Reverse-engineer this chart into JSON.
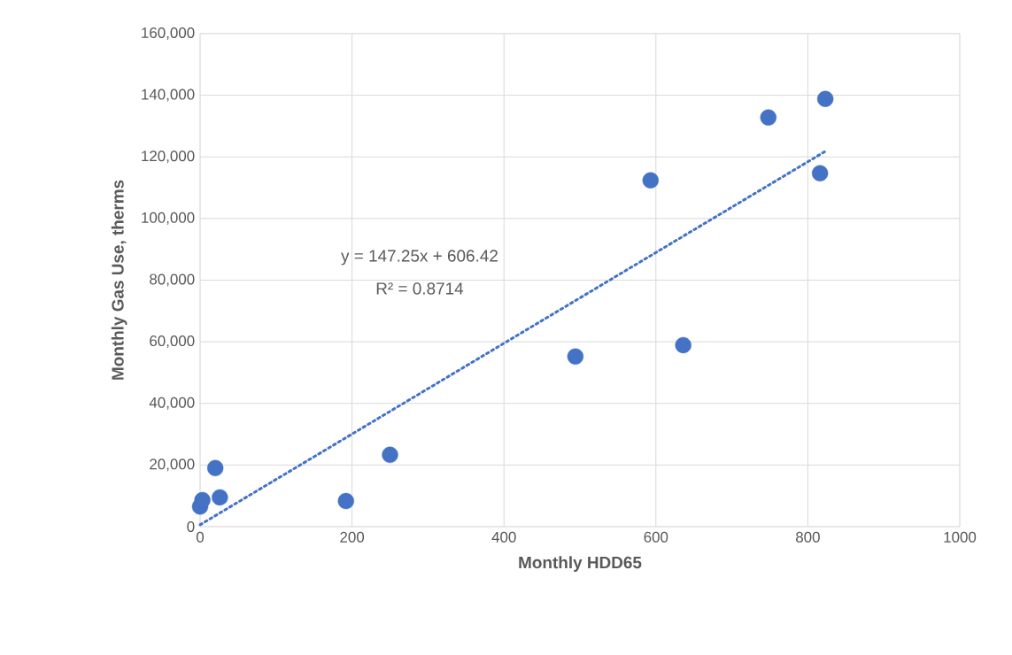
{
  "chart_data": {
    "type": "scatter",
    "xlabel": "Monthly HDD65",
    "ylabel": "Monthly Gas Use, therms",
    "xlim": [
      0,
      1000
    ],
    "xticks": [
      0,
      200,
      400,
      600,
      800,
      1000
    ],
    "ylim": [
      0,
      160000
    ],
    "yticks": [
      {
        "value": 0,
        "label": "0"
      },
      {
        "value": 20000,
        "label": "20,000"
      },
      {
        "value": 40000,
        "label": "40,000"
      },
      {
        "value": 60000,
        "label": "60,000"
      },
      {
        "value": 80000,
        "label": "80,000"
      },
      {
        "value": 100000,
        "label": "100,000"
      },
      {
        "value": 120000,
        "label": "120,000"
      },
      {
        "value": 140000,
        "label": "140,000"
      },
      {
        "value": 160000,
        "label": "160,000"
      }
    ],
    "grid": true,
    "series": [
      {
        "color": "#4472c4",
        "marker": "circle",
        "x": [
          0,
          3,
          20,
          26,
          192,
          250,
          494,
          593,
          636,
          748,
          816,
          823
        ],
        "values": [
          6500,
          8600,
          19000,
          9500,
          8300,
          23300,
          55200,
          112400,
          58900,
          132800,
          114700,
          138800
        ]
      },
      {
        "type": "line",
        "color": "#4472c4",
        "marker": "none",
        "line_style": "dotted",
        "x": [
          0,
          823
        ],
        "values": [
          600,
          121800
        ]
      }
    ],
    "annotations": [
      "y = 147.25x + 606.42",
      "R² = 0.8714"
    ]
  }
}
